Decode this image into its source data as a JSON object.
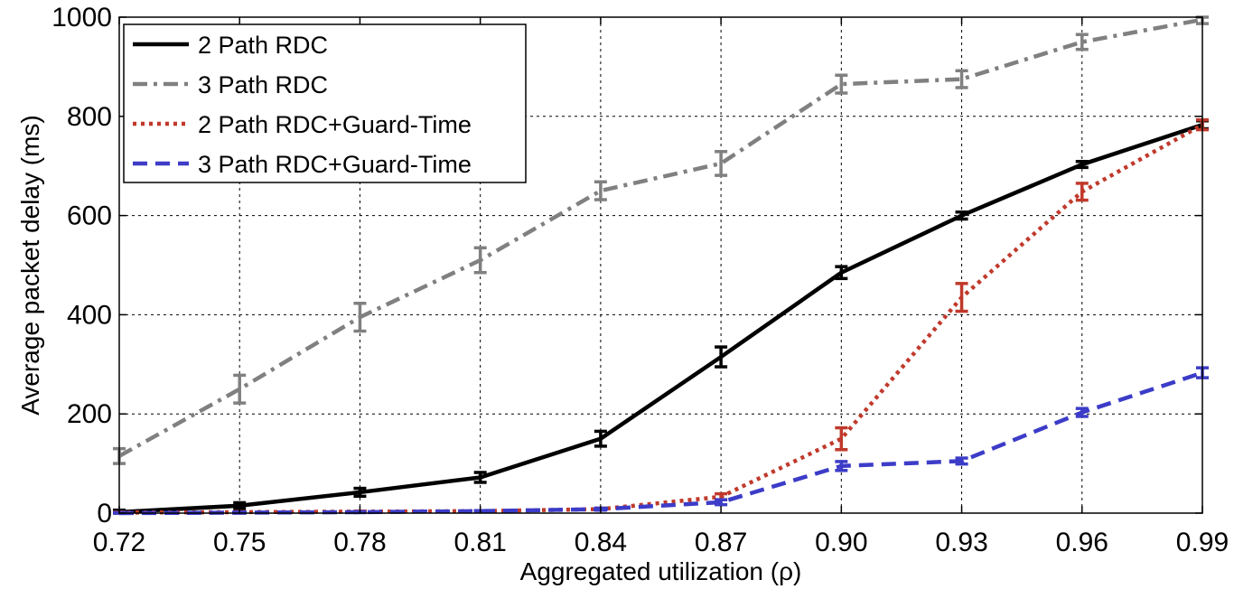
{
  "chart_data": {
    "type": "line",
    "xlabel": "Aggregated utilization (ρ)",
    "ylabel": "Average packet delay (ms)",
    "x": [
      0.72,
      0.75,
      0.78,
      0.81,
      0.84,
      0.87,
      0.9,
      0.93,
      0.96,
      0.99
    ],
    "x_tick_labels": [
      "0.72",
      "0.75",
      "0.78",
      "0.81",
      "0.84",
      "0.87",
      "0.90",
      "0.93",
      "0.96",
      "0.99"
    ],
    "y_ticks": [
      0,
      200,
      400,
      600,
      800,
      1000
    ],
    "y_tick_labels": [
      "0",
      "200",
      "400",
      "600",
      "800",
      "1000"
    ],
    "xlim": [
      0.72,
      0.99
    ],
    "ylim": [
      0,
      1000
    ],
    "grid": true,
    "legend_position": "top-left",
    "series": [
      {
        "name": "2 Path RDC",
        "color": "#000000",
        "line_style": "solid",
        "values": [
          2,
          15,
          42,
          72,
          150,
          315,
          485,
          600,
          703,
          783
        ],
        "error": [
          4,
          6,
          8,
          10,
          15,
          20,
          12,
          7,
          6,
          8
        ]
      },
      {
        "name": "3 Path RDC",
        "color": "#808080",
        "line_style": "dash-dot",
        "values": [
          115,
          250,
          395,
          510,
          650,
          705,
          865,
          875,
          950,
          995
        ],
        "error": [
          15,
          28,
          28,
          25,
          18,
          24,
          18,
          17,
          15,
          8
        ]
      },
      {
        "name": "2 Path RDC+Guard-Time",
        "color": "#c0392b",
        "line_style": "dotted",
        "values": [
          1,
          2,
          3,
          4,
          8,
          33,
          150,
          435,
          648,
          783
        ],
        "error": [
          1,
          1,
          1,
          1,
          2,
          6,
          22,
          28,
          17,
          10
        ]
      },
      {
        "name": "3 Path RDC+Guard-Time",
        "color": "#3c3cc8",
        "line_style": "dashed",
        "values": [
          0,
          1,
          2,
          4,
          8,
          22,
          95,
          105,
          203,
          283
        ],
        "error": [
          1,
          1,
          1,
          1,
          2,
          5,
          9,
          6,
          8,
          10
        ]
      }
    ]
  }
}
